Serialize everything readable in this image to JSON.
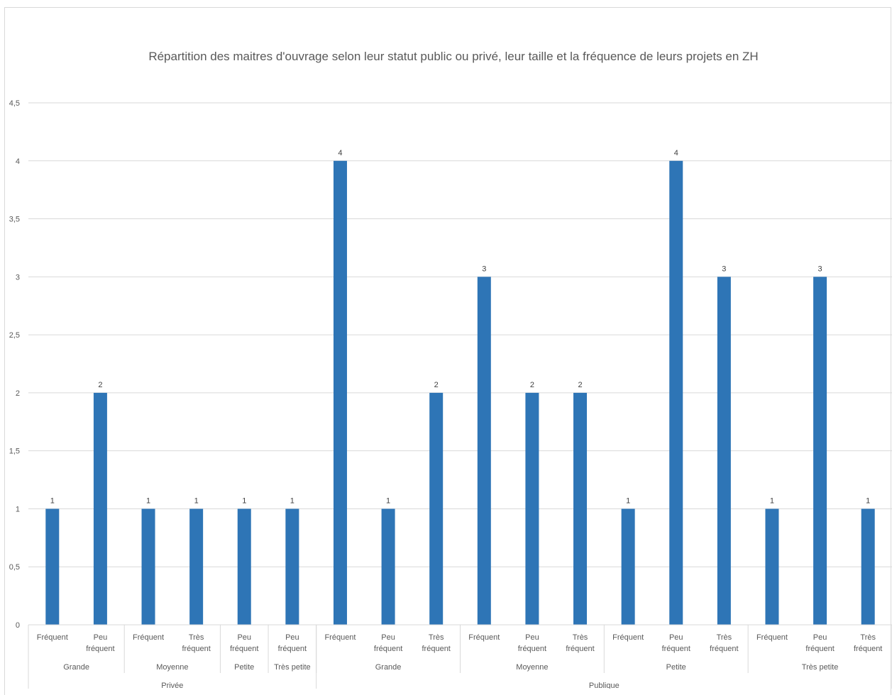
{
  "chart_data": {
    "type": "bar",
    "title": "Répartition des maitres d'ouvrage selon leur statut public ou privé, leur taille et la fréquence de leurs projets en ZH",
    "ylim": [
      0,
      4.5
    ],
    "y_ticks": [
      "0",
      "0,5",
      "1",
      "1,5",
      "2",
      "2,5",
      "3",
      "3,5",
      "4",
      "4,5"
    ],
    "grid": true,
    "color": "#2e75b6",
    "categories": [
      {
        "statut": "Privée",
        "taille": "Grande",
        "frequence": [
          "Fréquent"
        ],
        "value": 1
      },
      {
        "statut": "Privée",
        "taille": "Grande",
        "frequence": [
          "Peu",
          "fréquent"
        ],
        "value": 2
      },
      {
        "statut": "Privée",
        "taille": "Moyenne",
        "frequence": [
          "Fréquent"
        ],
        "value": 1
      },
      {
        "statut": "Privée",
        "taille": "Moyenne",
        "frequence": [
          "Très",
          "fréquent"
        ],
        "value": 1
      },
      {
        "statut": "Privée",
        "taille": "Petite",
        "frequence": [
          "Peu",
          "fréquent"
        ],
        "value": 1
      },
      {
        "statut": "Privée",
        "taille": "Très petite",
        "frequence": [
          "Peu",
          "fréquent"
        ],
        "value": 1
      },
      {
        "statut": "Publique",
        "taille": "Grande",
        "frequence": [
          "Fréquent"
        ],
        "value": 4
      },
      {
        "statut": "Publique",
        "taille": "Grande",
        "frequence": [
          "Peu",
          "fréquent"
        ],
        "value": 1
      },
      {
        "statut": "Publique",
        "taille": "Grande",
        "frequence": [
          "Très",
          "fréquent"
        ],
        "value": 2
      },
      {
        "statut": "Publique",
        "taille": "Moyenne",
        "frequence": [
          "Fréquent"
        ],
        "value": 3
      },
      {
        "statut": "Publique",
        "taille": "Moyenne",
        "frequence": [
          "Peu",
          "fréquent"
        ],
        "value": 2
      },
      {
        "statut": "Publique",
        "taille": "Moyenne",
        "frequence": [
          "Très",
          "fréquent"
        ],
        "value": 2
      },
      {
        "statut": "Publique",
        "taille": "Petite",
        "frequence": [
          "Fréquent"
        ],
        "value": 1
      },
      {
        "statut": "Publique",
        "taille": "Petite",
        "frequence": [
          "Peu",
          "fréquent"
        ],
        "value": 4
      },
      {
        "statut": "Publique",
        "taille": "Petite",
        "frequence": [
          "Très",
          "fréquent"
        ],
        "value": 3
      },
      {
        "statut": "Publique",
        "taille": "Très petite",
        "frequence": [
          "Fréquent"
        ],
        "value": 1
      },
      {
        "statut": "Publique",
        "taille": "Très petite",
        "frequence": [
          "Peu",
          "fréquent"
        ],
        "value": 3
      },
      {
        "statut": "Publique",
        "taille": "Très petite",
        "frequence": [
          "Très",
          "fréquent"
        ],
        "value": 1
      }
    ]
  }
}
